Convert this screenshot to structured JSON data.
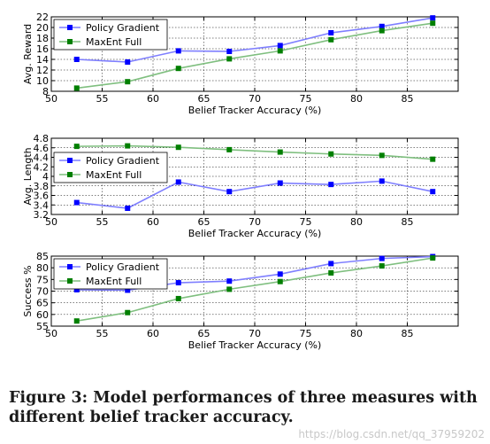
{
  "caption": "Figure 3: Model performances of three measures with different belief tracker accuracy.",
  "watermark": "https://blog.csdn.net/qq_37959202",
  "chart_data": [
    {
      "type": "line",
      "xlabel": "Belief Tracker Accuracy (%)",
      "ylabel": "Avg. Reward",
      "xlim": [
        50,
        90
      ],
      "ylim": [
        8,
        22
      ],
      "xticks": [
        50,
        55,
        60,
        65,
        70,
        75,
        80,
        85
      ],
      "yticks": [
        8,
        10,
        12,
        14,
        16,
        18,
        20,
        22
      ],
      "legend": "top-left",
      "grid": true,
      "x": [
        52.5,
        57.5,
        62.5,
        67.5,
        72.5,
        77.5,
        82.5,
        87.5
      ],
      "series": [
        {
          "name": "Policy Gradient",
          "color": "#7f7fff",
          "marker": "#0000ff",
          "values": [
            14.0,
            13.5,
            15.6,
            15.5,
            16.6,
            19.0,
            20.2,
            21.8
          ]
        },
        {
          "name": "MaxEnt Full",
          "color": "#7fbf7f",
          "marker": "#007f00",
          "values": [
            8.6,
            9.8,
            12.3,
            14.1,
            15.6,
            17.7,
            19.4,
            20.8
          ]
        }
      ]
    },
    {
      "type": "line",
      "xlabel": "Belief Tracker Accuracy (%)",
      "ylabel": "Avg. Length",
      "xlim": [
        50,
        90
      ],
      "ylim": [
        3.2,
        4.8
      ],
      "xticks": [
        50,
        55,
        60,
        65,
        70,
        75,
        80,
        85
      ],
      "yticks": [
        3.2,
        3.4,
        3.6,
        3.8,
        4.0,
        4.2,
        4.4,
        4.6,
        4.8
      ],
      "legend": "center-left",
      "grid": true,
      "x": [
        52.5,
        57.5,
        62.5,
        67.5,
        72.5,
        77.5,
        82.5,
        87.5
      ],
      "series": [
        {
          "name": "Policy Gradient",
          "color": "#7f7fff",
          "marker": "#0000ff",
          "values": [
            3.45,
            3.33,
            3.88,
            3.68,
            3.86,
            3.83,
            3.9,
            3.68
          ]
        },
        {
          "name": "MaxEnt Full",
          "color": "#7fbf7f",
          "marker": "#007f00",
          "values": [
            4.63,
            4.64,
            4.61,
            4.56,
            4.51,
            4.47,
            4.44,
            4.36
          ]
        }
      ]
    },
    {
      "type": "line",
      "xlabel": "Belief Tracker Accuracy (%)",
      "ylabel": "Success %",
      "xlim": [
        50,
        90
      ],
      "ylim": [
        55,
        85
      ],
      "xticks": [
        50,
        55,
        60,
        65,
        70,
        75,
        80,
        85
      ],
      "yticks": [
        55,
        60,
        65,
        70,
        75,
        80,
        85
      ],
      "legend": "top-left",
      "grid": true,
      "x": [
        52.5,
        57.5,
        62.5,
        67.5,
        72.5,
        77.5,
        82.5,
        87.5
      ],
      "series": [
        {
          "name": "Policy Gradient",
          "color": "#7f7fff",
          "marker": "#0000ff",
          "values": [
            70.6,
            70.4,
            73.6,
            74.3,
            77.3,
            81.8,
            84.0,
            84.8
          ]
        },
        {
          "name": "MaxEnt Full",
          "color": "#7fbf7f",
          "marker": "#007f00",
          "values": [
            57.2,
            60.8,
            66.8,
            70.8,
            74.1,
            77.8,
            80.8,
            84.2
          ]
        }
      ]
    }
  ]
}
